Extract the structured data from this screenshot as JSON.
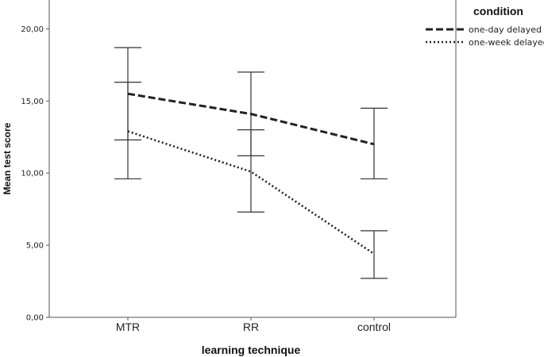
{
  "chart_data": {
    "type": "line",
    "xlabel": "learning technique",
    "ylabel": "Mean test score",
    "ylim": [
      0,
      22
    ],
    "yticks": [
      0,
      5,
      10,
      15,
      20
    ],
    "ytick_labels": [
      "0,00",
      "5,00",
      "10,00",
      "15,00",
      "20,00"
    ],
    "categories": [
      "MTR",
      "RR",
      "control"
    ],
    "legend_title": "condition",
    "legend_position": "top-right",
    "series": [
      {
        "name": "one-day delayed",
        "style": "dashed",
        "color": "#222222",
        "values": [
          15.5,
          14.1,
          12.0
        ],
        "err_low": [
          12.3,
          11.2,
          9.6
        ],
        "err_high": [
          18.7,
          17.0,
          14.5
        ]
      },
      {
        "name": "one-week delayed",
        "style": "dotted",
        "color": "#222222",
        "values": [
          12.9,
          10.1,
          4.4
        ],
        "err_low": [
          9.6,
          7.3,
          2.7
        ],
        "err_high": [
          16.3,
          13.0,
          6.0
        ]
      }
    ]
  }
}
